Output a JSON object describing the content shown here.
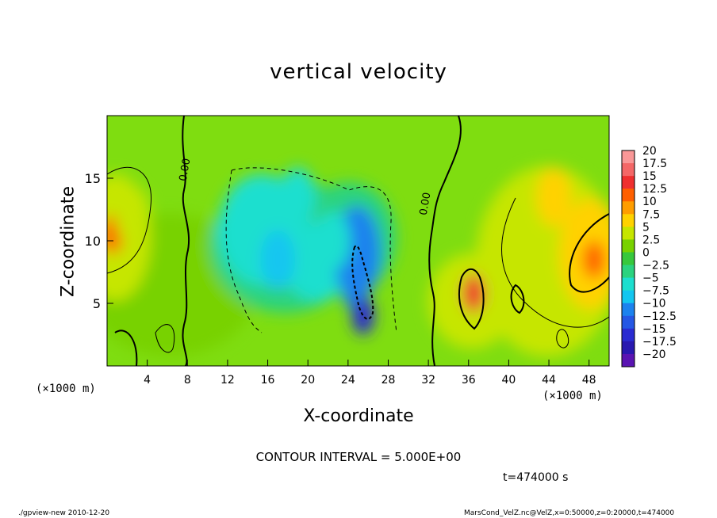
{
  "chart_data": {
    "type": "heatmap",
    "title": "vertical velocity",
    "xlabel": "X-coordinate",
    "ylabel": "Z-coordinate",
    "x_unit_label": "(×1000 m)",
    "x_ticks": [
      4,
      8,
      12,
      16,
      20,
      24,
      28,
      32,
      36,
      40,
      44,
      48
    ],
    "y_ticks": [
      5,
      10,
      15
    ],
    "xlim": [
      0,
      50
    ],
    "ylim": [
      0,
      20
    ],
    "colorbar_levels": [
      "20",
      "17.5",
      "15",
      "12.5",
      "10",
      "7.5",
      "5",
      "2.5",
      "0",
      "−2.5",
      "−5",
      "−7.5",
      "−10",
      "−12.5",
      "−15",
      "−17.5",
      "−20"
    ],
    "colorbar_colors": [
      "#f99797",
      "#f46767",
      "#ef2f2f",
      "#ff5f00",
      "#ff9d00",
      "#ffd200",
      "#c6e600",
      "#78d200",
      "#37c83c",
      "#2bd37f",
      "#1ddfcf",
      "#13c6f0",
      "#1c82ee",
      "#2557e4",
      "#2a2bd1",
      "#2919b0",
      "#5a14b2"
    ],
    "contour_labels": [
      "0.00",
      "0.00"
    ],
    "grid": false,
    "features": [
      {
        "x": 0.5,
        "z": 10.5,
        "value": 12
      },
      {
        "x": 2.5,
        "z": 12,
        "value": 6
      },
      {
        "x": 36.5,
        "z": 5.8,
        "value": 14
      },
      {
        "x": 48.5,
        "z": 8.5,
        "value": 12
      },
      {
        "x": 44.5,
        "z": 13.5,
        "value": 7
      },
      {
        "x": 15.5,
        "z": 11.5,
        "value": -6
      },
      {
        "x": 17,
        "z": 8.5,
        "value": -7
      },
      {
        "x": 24.5,
        "z": 6,
        "value": -11
      },
      {
        "x": 25.5,
        "z": 4,
        "value": -14
      },
      {
        "x": 22.5,
        "z": 10,
        "value": -6
      },
      {
        "x": 19,
        "z": 13.5,
        "value": -4
      }
    ]
  },
  "annotations": {
    "contour_interval": "CONTOUR INTERVAL = 5.000E+00",
    "time": "t=474000 s",
    "footer_left": "./gpview-new 2010-12-20",
    "footer_right": "MarsCond_VelZ.nc@VelZ,x=0:50000,z=0:20000,t=474000"
  }
}
